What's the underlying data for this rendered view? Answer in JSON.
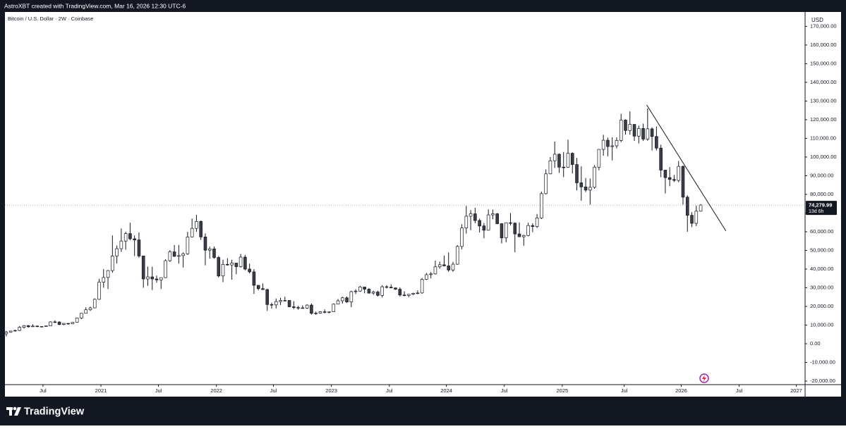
{
  "top_bar": "AstroXBT created with TradingView.com, Mar 16, 2026 12:30 UTC-6",
  "brand": "TradingView",
  "chart_data": {
    "type": "candlestick",
    "title": "Bitcoin / U.S. Dollar · 2W · Coinbase",
    "currency": "USD",
    "up_color": "#ffffff",
    "down_color": "#3a3d45",
    "outline_color": "#131722",
    "ylim": [
      -21900,
      177700
    ],
    "yticks": [
      {
        "value": -20000,
        "label": "-20,000.00"
      },
      {
        "value": -10000,
        "label": "-10,000.00"
      },
      {
        "value": 0,
        "label": "0.00"
      },
      {
        "value": 10000,
        "label": "10,000.00"
      },
      {
        "value": 20000,
        "label": "20,000.00"
      },
      {
        "value": 30000,
        "label": "30,000.00"
      },
      {
        "value": 40000,
        "label": "40,000.00"
      },
      {
        "value": 50000,
        "label": "50,000.00"
      },
      {
        "value": 60000,
        "label": "60,000.00"
      },
      {
        "value": 70000,
        "label": "70,000.00"
      },
      {
        "value": 80000,
        "label": "80,000.00"
      },
      {
        "value": 90000,
        "label": "90,000.00"
      },
      {
        "value": 100000,
        "label": "100,000.00"
      },
      {
        "value": 110000,
        "label": "110,000.00"
      },
      {
        "value": 120000,
        "label": "120,000.00"
      },
      {
        "value": 130000,
        "label": "130,000.00"
      },
      {
        "value": 140000,
        "label": "140,000.00"
      },
      {
        "value": 150000,
        "label": "150,000.00"
      },
      {
        "value": 160000,
        "label": "160,000.00"
      },
      {
        "value": 170000,
        "label": "170,000.00"
      }
    ],
    "xlim": [
      -0.3,
      180.6
    ],
    "xticks": [
      {
        "value": 8.3,
        "label": "Jul"
      },
      {
        "value": 21.4,
        "label": "2021"
      },
      {
        "value": 34.4,
        "label": "Jul"
      },
      {
        "value": 47.5,
        "label": "2022"
      },
      {
        "value": 60.4,
        "label": "Jul"
      },
      {
        "value": 73.5,
        "label": "2023"
      },
      {
        "value": 86.6,
        "label": "Jul"
      },
      {
        "value": 99.5,
        "label": "2024"
      },
      {
        "value": 112.6,
        "label": "Jul"
      },
      {
        "value": 125.7,
        "label": "2025"
      },
      {
        "value": 139.7,
        "label": "Jul"
      },
      {
        "value": 152.6,
        "label": "2026"
      },
      {
        "value": 165.7,
        "label": "Jul"
      },
      {
        "value": 178.6,
        "label": "2027"
      }
    ],
    "last_price": 74279.99,
    "last_price_label": "74,279.99",
    "countdown": "13d 6h",
    "trendline": {
      "from": [
        144.8,
        127900
      ],
      "to": [
        162.7,
        60400
      ]
    },
    "candles": [
      [
        5300,
        6900,
        4000,
        6200
      ],
      [
        6200,
        7000,
        5900,
        6800
      ],
      [
        6800,
        7500,
        6500,
        7100
      ],
      [
        7100,
        9400,
        6800,
        8800
      ],
      [
        8800,
        10000,
        8100,
        9700
      ],
      [
        9700,
        10000,
        8600,
        9100
      ],
      [
        9100,
        10400,
        9000,
        9450
      ],
      [
        9450,
        9800,
        8900,
        9150
      ],
      [
        9150,
        9400,
        8900,
        9250
      ],
      [
        9250,
        9600,
        9050,
        9550
      ],
      [
        9550,
        12000,
        9500,
        11700
      ],
      [
        11700,
        12500,
        11100,
        11650
      ],
      [
        11650,
        12000,
        9900,
        10300
      ],
      [
        10300,
        11100,
        9900,
        10900
      ],
      [
        10900,
        11000,
        10200,
        10700
      ],
      [
        10700,
        11700,
        10600,
        11500
      ],
      [
        11500,
        14000,
        11300,
        13800
      ],
      [
        13800,
        16500,
        13200,
        16300
      ],
      [
        16300,
        19500,
        16200,
        18200
      ],
      [
        18200,
        19900,
        17600,
        19200
      ],
      [
        19200,
        24300,
        19000,
        23800
      ],
      [
        23800,
        34800,
        23500,
        33000
      ],
      [
        33000,
        40000,
        30000,
        35500
      ],
      [
        35500,
        39500,
        29300,
        39200
      ],
      [
        39200,
        58000,
        38000,
        47000
      ],
      [
        47000,
        52600,
        43000,
        50900
      ],
      [
        50900,
        61700,
        49200,
        55000
      ],
      [
        55000,
        60000,
        50400,
        59000
      ],
      [
        59000,
        64800,
        55400,
        56200
      ],
      [
        56200,
        58000,
        47000,
        55600
      ],
      [
        55600,
        59600,
        46000,
        47000
      ],
      [
        47000,
        47000,
        30000,
        34700
      ],
      [
        34700,
        41300,
        31000,
        35800
      ],
      [
        35800,
        41300,
        28800,
        34700
      ],
      [
        34700,
        36500,
        32700,
        34200
      ],
      [
        34200,
        35000,
        29300,
        35400
      ],
      [
        35400,
        45300,
        35200,
        44500
      ],
      [
        44500,
        50200,
        43800,
        49200
      ],
      [
        49200,
        52900,
        46500,
        46800
      ],
      [
        46800,
        52900,
        42900,
        47200
      ],
      [
        47200,
        49000,
        40800,
        48200
      ],
      [
        48200,
        60000,
        47600,
        57200
      ],
      [
        57200,
        67000,
        57000,
        61800
      ],
      [
        61800,
        69000,
        60000,
        65500
      ],
      [
        65500,
        66000,
        55600,
        57200
      ],
      [
        57200,
        59100,
        42000,
        50100
      ],
      [
        50100,
        52000,
        45600,
        50800
      ],
      [
        50800,
        52100,
        45500,
        46200
      ],
      [
        46200,
        47000,
        35500,
        36300
      ],
      [
        36300,
        45000,
        33000,
        42500
      ],
      [
        42500,
        45800,
        41800,
        42200
      ],
      [
        42200,
        45000,
        34300,
        43200
      ],
      [
        43200,
        43200,
        37200,
        41300
      ],
      [
        41300,
        48100,
        40800,
        46400
      ],
      [
        46400,
        47500,
        39300,
        40000
      ],
      [
        40000,
        42900,
        37700,
        38500
      ],
      [
        38500,
        40000,
        26700,
        31300
      ],
      [
        31300,
        31300,
        28600,
        29500
      ],
      [
        29500,
        32300,
        28900,
        29000
      ],
      [
        29000,
        29500,
        17600,
        21000
      ],
      [
        21000,
        22000,
        18800,
        20800
      ],
      [
        20800,
        24200,
        18900,
        22600
      ],
      [
        22600,
        24600,
        20700,
        23200
      ],
      [
        23200,
        25200,
        22600,
        23200
      ],
      [
        23200,
        23300,
        19500,
        19800
      ],
      [
        19800,
        22800,
        18500,
        19400
      ],
      [
        19400,
        20300,
        18200,
        19200
      ],
      [
        19200,
        20500,
        18900,
        19100
      ],
      [
        19100,
        21100,
        18700,
        20700
      ],
      [
        20700,
        21500,
        15600,
        16300
      ],
      [
        16300,
        17200,
        15500,
        16400
      ],
      [
        16400,
        17400,
        16100,
        17100
      ],
      [
        17100,
        18400,
        16300,
        16800
      ],
      [
        16800,
        17100,
        16300,
        17100
      ],
      [
        17100,
        21600,
        17000,
        21200
      ],
      [
        21200,
        24000,
        21100,
        23000
      ],
      [
        23000,
        25200,
        21500,
        24600
      ],
      [
        24600,
        25300,
        21900,
        22400
      ],
      [
        22400,
        28400,
        19600,
        27900
      ],
      [
        27900,
        29200,
        26600,
        28200
      ],
      [
        28200,
        31000,
        27800,
        30400
      ],
      [
        30400,
        30400,
        27000,
        29200
      ],
      [
        29200,
        29800,
        26900,
        27100
      ],
      [
        27100,
        28400,
        26200,
        27700
      ],
      [
        27700,
        28400,
        25300,
        25900
      ],
      [
        25900,
        31400,
        24800,
        30500
      ],
      [
        30500,
        31400,
        29600,
        30300
      ],
      [
        30300,
        31800,
        29700,
        29900
      ],
      [
        29900,
        30100,
        28900,
        29200
      ],
      [
        29200,
        30200,
        25300,
        26100
      ],
      [
        26100,
        28100,
        25400,
        25900
      ],
      [
        25900,
        26400,
        24900,
        26500
      ],
      [
        26500,
        27300,
        26000,
        27000
      ],
      [
        27000,
        28600,
        26500,
        27200
      ],
      [
        27200,
        35200,
        26800,
        34500
      ],
      [
        34500,
        37900,
        34100,
        37000
      ],
      [
        37000,
        38400,
        35000,
        37400
      ],
      [
        37400,
        44500,
        37100,
        41200
      ],
      [
        41200,
        44000,
        40200,
        42300
      ],
      [
        42300,
        47200,
        41400,
        41700
      ],
      [
        41700,
        48900,
        38500,
        39500
      ],
      [
        39500,
        43900,
        38500,
        42600
      ],
      [
        42600,
        52800,
        42300,
        52100
      ],
      [
        52100,
        64000,
        50600,
        62000
      ],
      [
        62000,
        73800,
        59000,
        68300
      ],
      [
        68300,
        71600,
        60800,
        69600
      ],
      [
        69600,
        72800,
        64500,
        66000
      ],
      [
        66000,
        67000,
        59600,
        63100
      ],
      [
        63100,
        64700,
        56500,
        60800
      ],
      [
        60800,
        71900,
        60600,
        69000
      ],
      [
        69000,
        71900,
        66700,
        69600
      ],
      [
        69600,
        70000,
        64000,
        64300
      ],
      [
        64300,
        64600,
        53700,
        56700
      ],
      [
        56700,
        64900,
        54300,
        64800
      ],
      [
        64800,
        70000,
        63400,
        64600
      ],
      [
        64600,
        65000,
        49000,
        58800
      ],
      [
        58800,
        65000,
        57200,
        57300
      ],
      [
        57300,
        58400,
        52500,
        58000
      ],
      [
        58000,
        64800,
        57500,
        63300
      ],
      [
        63300,
        64500,
        59800,
        62800
      ],
      [
        62800,
        69500,
        62000,
        67400
      ],
      [
        67400,
        81500,
        66800,
        80400
      ],
      [
        80400,
        93400,
        80000,
        91000
      ],
      [
        91000,
        100000,
        90800,
        98000
      ],
      [
        98000,
        108300,
        94200,
        101500
      ],
      [
        101500,
        101900,
        91500,
        94600
      ],
      [
        94600,
        102700,
        89300,
        94500
      ],
      [
        94500,
        109300,
        94200,
        102000
      ],
      [
        102000,
        102500,
        91200,
        96000
      ],
      [
        96000,
        99500,
        82100,
        86200
      ],
      [
        86200,
        95000,
        76600,
        84000
      ],
      [
        84000,
        88800,
        81200,
        82300
      ],
      [
        82300,
        88500,
        74500,
        83800
      ],
      [
        83800,
        95700,
        83000,
        94600
      ],
      [
        94600,
        104300,
        92900,
        104100
      ],
      [
        104100,
        111900,
        100700,
        109000
      ],
      [
        109000,
        110400,
        100400,
        105600
      ],
      [
        105600,
        110600,
        98200,
        106000
      ],
      [
        106000,
        110500,
        104600,
        108900
      ],
      [
        108900,
        123200,
        108000,
        119800
      ],
      [
        119800,
        120200,
        112000,
        114200
      ],
      [
        114200,
        124500,
        112000,
        117500
      ],
      [
        117500,
        117600,
        108600,
        111200
      ],
      [
        111200,
        116800,
        107300,
        115300
      ],
      [
        115300,
        117900,
        108600,
        109600
      ],
      [
        109600,
        126100,
        108700,
        115100
      ],
      [
        115100,
        115900,
        103500,
        111000
      ],
      [
        111000,
        116400,
        103500,
        104800
      ],
      [
        104800,
        106600,
        89200,
        93000
      ],
      [
        93000,
        93100,
        80500,
        89000
      ],
      [
        89000,
        94600,
        84400,
        88000
      ],
      [
        88000,
        90400,
        86600,
        87500
      ],
      [
        87500,
        97900,
        86500,
        95000
      ],
      [
        95000,
        95500,
        74500,
        78500
      ],
      [
        78500,
        79500,
        60000,
        68800
      ],
      [
        68800,
        70500,
        62500,
        64500
      ],
      [
        64500,
        74000,
        63000,
        71000
      ],
      [
        71000,
        74800,
        70800,
        74279.99
      ]
    ]
  }
}
